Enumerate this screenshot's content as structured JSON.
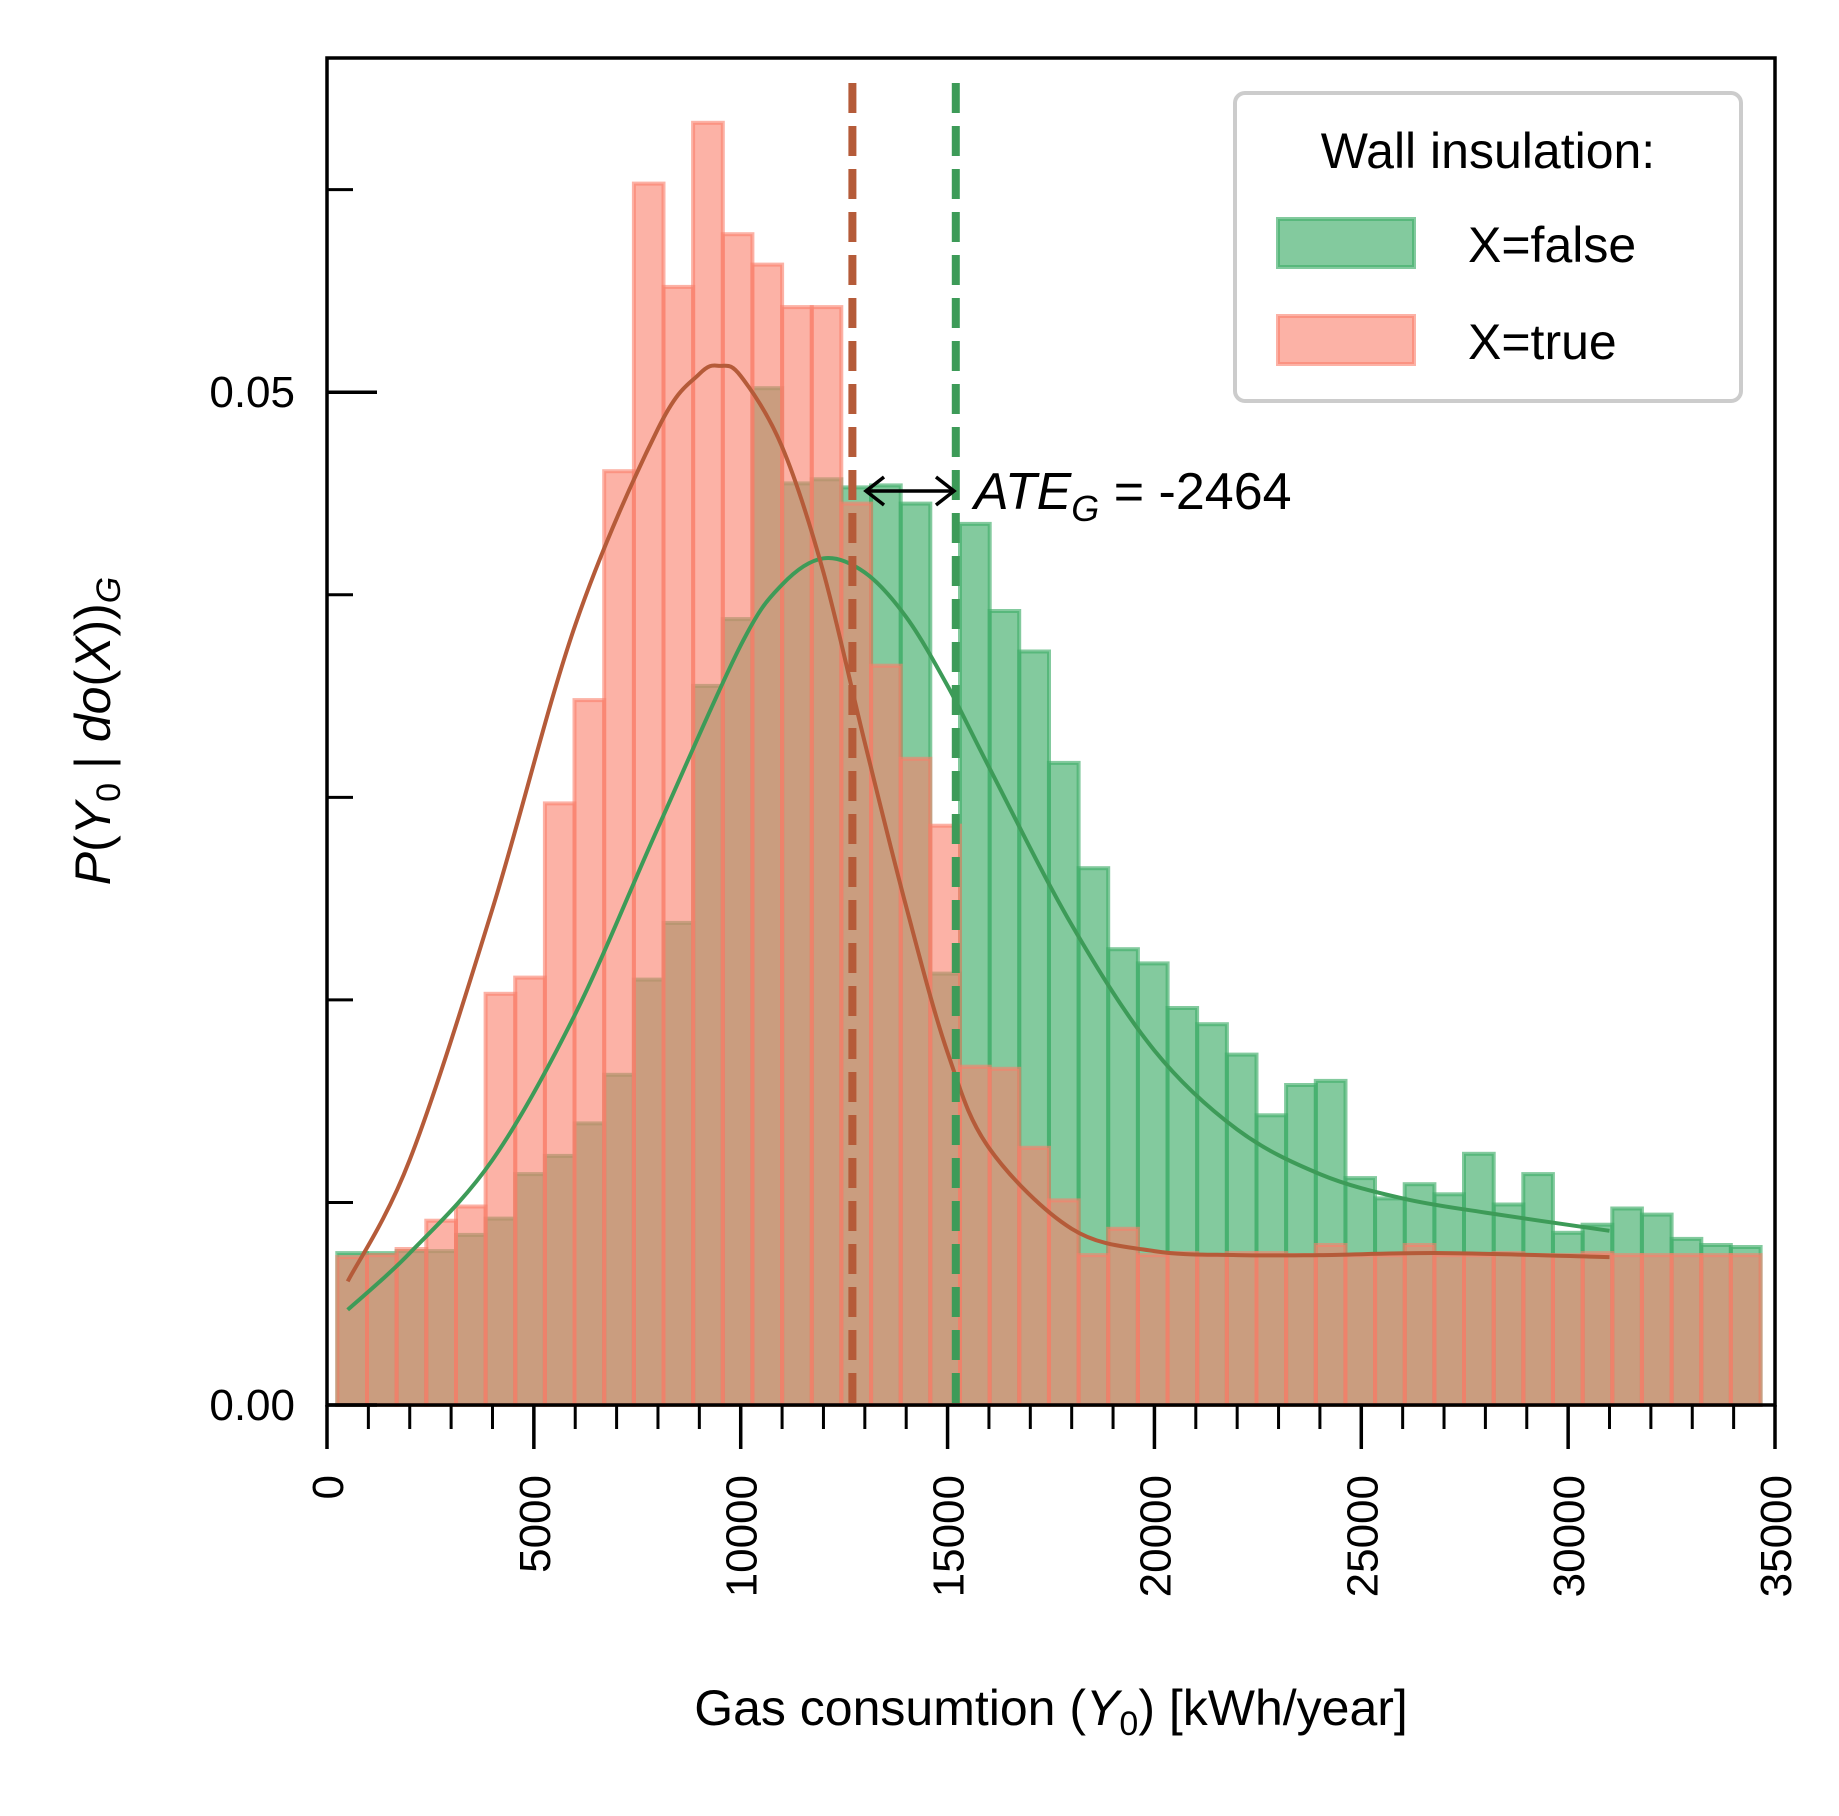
{
  "chart_data": {
    "type": "bar",
    "xlabel_prefix": "Gas consumtion (",
    "xlabel_var": "Y",
    "xlabel_sub": "0",
    "xlabel_suffix": ") [kWh/year]",
    "ylabel": "P(Y0 | do(X))G",
    "xlim": [
      0,
      35000
    ],
    "ylim": [
      0,
      0.0665
    ],
    "x_ticks": [
      0,
      5000,
      10000,
      15000,
      20000,
      25000,
      30000,
      35000
    ],
    "x_tick_labels": [
      "0",
      "5000",
      "10000",
      "15000",
      "20000",
      "25000",
      "30000",
      "35000"
    ],
    "y_ticks": [
      0.0,
      0.05
    ],
    "y_tick_labels": [
      "0.00",
      "0.05"
    ],
    "y_minor_ticks": [
      0.01,
      0.02,
      0.03,
      0.04,
      0.06
    ],
    "bin_edges": [
      250,
      967,
      1683,
      2400,
      3117,
      3833,
      4550,
      5267,
      5983,
      6700,
      7417,
      8133,
      8850,
      9567,
      10283,
      11000,
      11717,
      12433,
      13150,
      13867,
      14583,
      15300,
      16017,
      16733,
      17450,
      18167,
      18883,
      19600,
      20317,
      21033,
      21750,
      22467,
      23183,
      23900,
      24617,
      25333,
      26050,
      26767,
      27483,
      28200,
      28917,
      29633,
      30350,
      31067,
      31783,
      32500,
      33217,
      33933,
      34650
    ],
    "legend": {
      "title": "Wall insulation:",
      "position": "top-right"
    },
    "series": [
      {
        "name": "X=false",
        "color": "#41ad6a",
        "line_color": "#3d9b58",
        "values": [
          0.0075,
          0.0075,
          0.0076,
          0.0076,
          0.0084,
          0.0092,
          0.0114,
          0.0123,
          0.0139,
          0.0163,
          0.021,
          0.0238,
          0.0355,
          0.0388,
          0.0502,
          0.0455,
          0.0457,
          0.0453,
          0.0454,
          0.0445,
          0.0213,
          0.0435,
          0.0392,
          0.0372,
          0.0317,
          0.0265,
          0.0225,
          0.0218,
          0.0196,
          0.0188,
          0.0173,
          0.0143,
          0.0158,
          0.016,
          0.0112,
          0.0102,
          0.0109,
          0.0104,
          0.0124,
          0.0099,
          0.0114,
          0.0085,
          0.0089,
          0.0097,
          0.0094,
          0.0082,
          0.0079,
          0.0078,
          0.0115
        ]
      },
      {
        "name": "X=true",
        "color": "#fa7f6a",
        "line_color": "#b55b39",
        "values": [
          0.0073,
          0.0074,
          0.0077,
          0.0091,
          0.0098,
          0.0203,
          0.0211,
          0.0297,
          0.0348,
          0.0461,
          0.0603,
          0.0552,
          0.0633,
          0.0578,
          0.0563,
          0.0542,
          0.0542,
          0.0445,
          0.0365,
          0.0319,
          0.0286,
          0.0167,
          0.0166,
          0.0127,
          0.0101,
          0.0074,
          0.0087,
          0.0074,
          0.0075,
          0.0074,
          0.0075,
          0.0075,
          0.0074,
          0.0079,
          0.0074,
          0.0074,
          0.0079,
          0.0074,
          0.0074,
          0.0075,
          0.0074,
          0.0074,
          0.0075,
          0.0074,
          0.0074,
          0.0074,
          0.0074,
          0.0074,
          0.0074
        ]
      }
    ],
    "density_curves": [
      {
        "name": "X=false",
        "x": [
          500,
          2000,
          4000,
          6000,
          8000,
          10000,
          11000,
          12000,
          13000,
          14000,
          15000,
          16000,
          18000,
          20000,
          22000,
          24000,
          26000,
          28000,
          31000
        ],
        "y": [
          0.0047,
          0.0075,
          0.0121,
          0.0193,
          0.0285,
          0.0375,
          0.0405,
          0.0418,
          0.0411,
          0.0389,
          0.0355,
          0.0315,
          0.0237,
          0.0175,
          0.0136,
          0.0114,
          0.0102,
          0.0095,
          0.0086
        ]
      },
      {
        "name": "X=true",
        "x": [
          500,
          2000,
          4000,
          6000,
          8000,
          9000,
          9500,
          10000,
          11000,
          12000,
          13000,
          14000,
          15000,
          16000,
          18000,
          20000,
          22000,
          24000,
          27000,
          31000
        ],
        "y": [
          0.0061,
          0.0121,
          0.0245,
          0.0385,
          0.0482,
          0.0509,
          0.0513,
          0.0508,
          0.0473,
          0.0411,
          0.0327,
          0.0246,
          0.0174,
          0.0127,
          0.0087,
          0.0076,
          0.0074,
          0.0074,
          0.0075,
          0.0073
        ]
      }
    ],
    "vlines": [
      {
        "x": 12700,
        "color": "#b55b39",
        "style": "dashed"
      },
      {
        "x": 15200,
        "color": "#3d9b58",
        "style": "dashed"
      }
    ],
    "annotation": {
      "arrow_from": 12700,
      "arrow_to": 15200,
      "y": 0.05,
      "label_main": "ATE",
      "label_sub": "G",
      "label_rest": " = -2464"
    }
  }
}
